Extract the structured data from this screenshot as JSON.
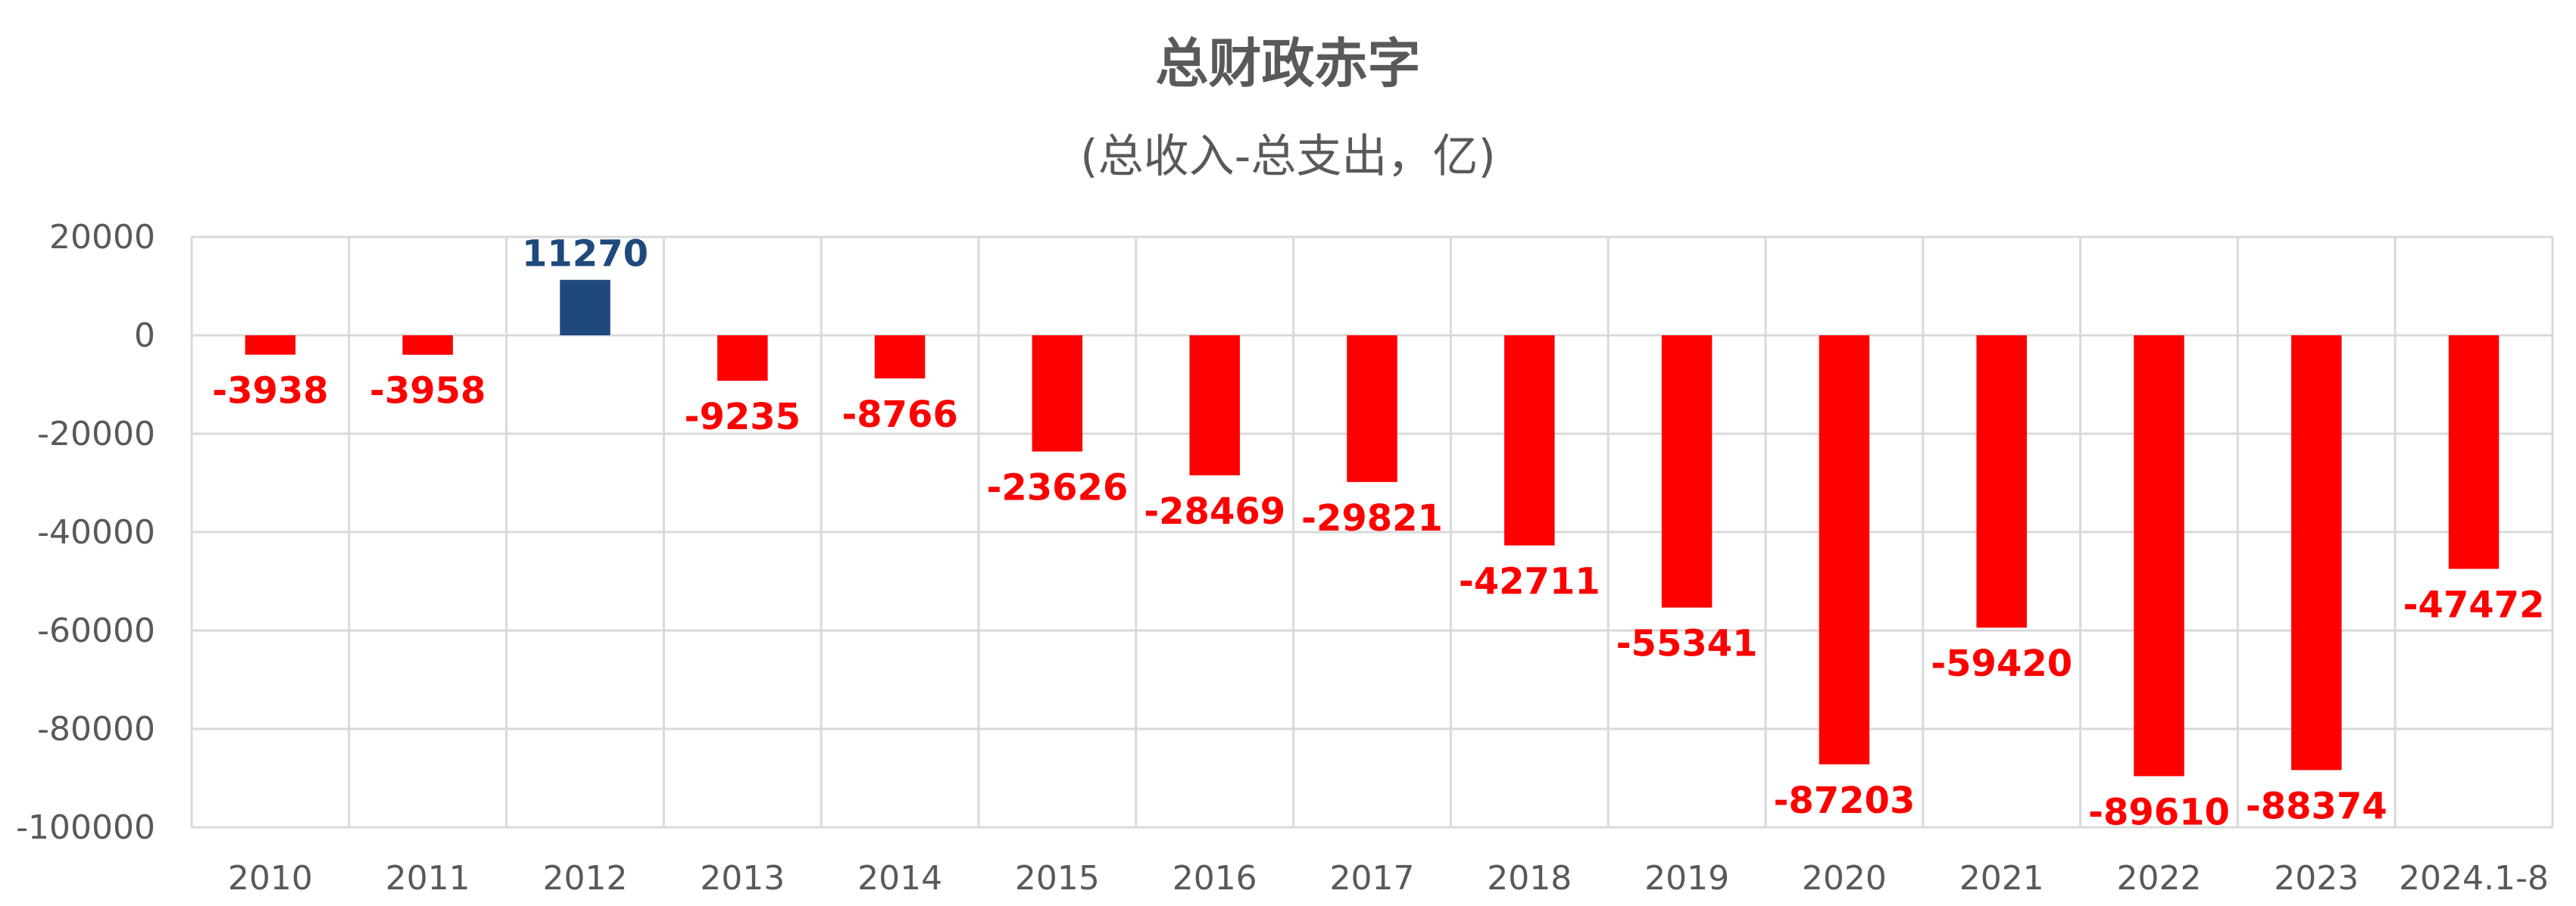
{
  "chart_data": {
    "type": "bar",
    "title": "总财政赤字",
    "subtitle": "(总收入-总支出，亿)",
    "xlabel": "",
    "ylabel": "",
    "categories": [
      "2010",
      "2011",
      "2012",
      "2013",
      "2014",
      "2015",
      "2016",
      "2017",
      "2018",
      "2019",
      "2020",
      "2021",
      "2022",
      "2023",
      "2024.1-8"
    ],
    "values": [
      -3938,
      -3958,
      11270,
      -9235,
      -8766,
      -23626,
      -28469,
      -29821,
      -42711,
      -55341,
      -87203,
      -59420,
      -89610,
      -88374,
      -47472
    ],
    "ylim": [
      -100000,
      20000
    ],
    "yticks": [
      20000,
      0,
      -20000,
      -40000,
      -60000,
      -80000,
      -100000
    ],
    "grid": true,
    "legend": "none",
    "colors": {
      "positive": "#1f497d",
      "negative": "#ff0000",
      "grid": "#d9d9d9",
      "text": "#595959"
    }
  }
}
